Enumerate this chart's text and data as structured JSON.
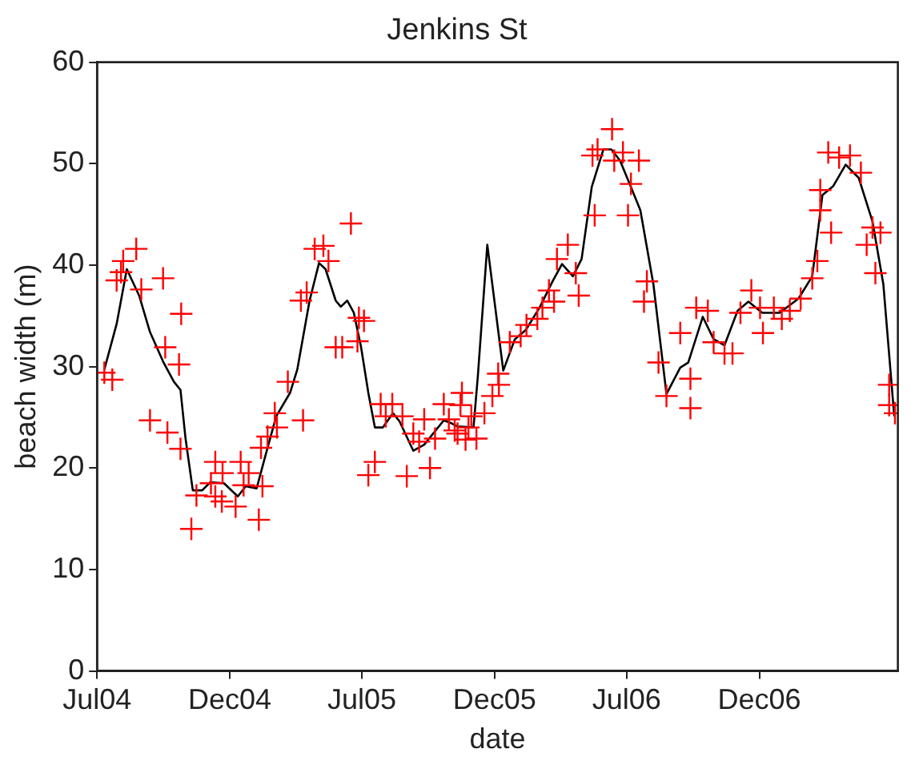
{
  "chart_data": {
    "type": "scatter",
    "title": "Jenkins St",
    "xlabel": "date",
    "ylabel": "beach width (m)",
    "xlim": [
      "2004-07-01",
      "2007-07-10"
    ],
    "xticks": [
      {
        "value": "2004-07-01",
        "label": "Jul04"
      },
      {
        "value": "2004-12-31",
        "label": "Dec04"
      },
      {
        "value": "2005-07-01",
        "label": "Jul05"
      },
      {
        "value": "2005-12-31",
        "label": "Dec05"
      },
      {
        "value": "2006-07-01",
        "label": "Jul06"
      },
      {
        "value": "2006-12-31",
        "label": "Dec06"
      }
    ],
    "ylim": [
      0,
      60
    ],
    "yticks": [
      0,
      10,
      20,
      30,
      40,
      50,
      60
    ],
    "grid": false,
    "legend": false,
    "series": [
      {
        "color": "#ff0000",
        "marker": "cross",
        "x": [
          "2004-07-11",
          "2004-07-22",
          "2004-07-28",
          "2004-08-03",
          "2004-08-06",
          "2004-08-24",
          "2004-08-31",
          "2004-09-30",
          "2004-10-25",
          "2004-10-03",
          "2004-10-22",
          "2004-09-12",
          "2004-10-06",
          "2004-10-24",
          "2004-11-08",
          "2004-11-15",
          "2004-12-05",
          "2004-12-11",
          "2004-12-11",
          "2004-12-21",
          "2004-12-20",
          "2005-01-08",
          "2005-01-19",
          "2005-01-15",
          "2005-01-26",
          "2005-02-09",
          "2005-02-14",
          "2005-02-12",
          "2005-02-21",
          "2005-03-06",
          "2005-03-03",
          "2005-03-21",
          "2005-04-11",
          "2005-04-08",
          "2005-04-16",
          "2005-04-27",
          "2005-05-09",
          "2005-05-16",
          "2005-06-16",
          "2005-05-26",
          "2005-06-04",
          "2005-06-25",
          "2005-06-27",
          "2005-07-04",
          "2005-07-19",
          "2005-07-10",
          "2005-07-27",
          "2005-08-12",
          "2005-08-03",
          "2005-08-26",
          "2005-09-10",
          "2005-09-01",
          "2005-09-18",
          "2005-09-25",
          "2005-10-03",
          "2005-10-10",
          "2005-10-22",
          "2005-10-29",
          "2005-11-06",
          "2005-11-16",
          "2005-11-25",
          "2005-12-06",
          "2005-11-14",
          "2005-11-10",
          "2005-11-21",
          "2005-11-29",
          "2005-12-17",
          "2005-12-28",
          "2006-01-06",
          "2006-01-05",
          "2006-01-21",
          "2006-02-05",
          "2006-02-13",
          "2006-02-28",
          "2006-03-07",
          "2006-03-16",
          "2006-03-23",
          "2006-03-27",
          "2006-04-11",
          "2006-04-22",
          "2006-04-26",
          "2006-05-18",
          "2006-05-15",
          "2006-05-22",
          "2006-06-11",
          "2006-06-14",
          "2006-06-26",
          "2006-07-07",
          "2006-07-18",
          "2006-07-03",
          "2006-07-29",
          "2006-07-25",
          "2006-08-14",
          "2006-08-25",
          "2006-09-27",
          "2006-09-27",
          "2006-09-13",
          "2006-10-05",
          "2006-10-21",
          "2006-10-29",
          "2006-11-13",
          "2006-11-24",
          "2006-12-05",
          "2006-12-20",
          "2007-01-01",
          "2007-01-05",
          "2007-01-20",
          "2007-01-31",
          "2007-02-11",
          "2007-02-26",
          "2007-03-14",
          "2007-03-21",
          "2007-04-09",
          "2007-03-25",
          "2007-03-25",
          "2007-04-05",
          "2007-04-20",
          "2007-05-05",
          "2007-05-20",
          "2007-06-05",
          "2007-05-28",
          "2007-06-16",
          "2007-06-09",
          "2007-06-28",
          "2007-06-28",
          "2007-07-06"
        ],
        "values": [
          29.4,
          28.7,
          38.5,
          39.3,
          40.4,
          41.6,
          37.6,
          38.7,
          35.2,
          31.9,
          30.2,
          24.7,
          23.5,
          21.9,
          14.0,
          17.3,
          18.5,
          20.6,
          17.2,
          19.5,
          16.7,
          16.2,
          18.3,
          20.6,
          19.5,
          14.9,
          18.2,
          22.0,
          23.1,
          24.0,
          25.4,
          28.5,
          24.7,
          36.5,
          37.3,
          41.6,
          41.9,
          40.4,
          44.1,
          31.9,
          31.9,
          32.5,
          34.8,
          34.5,
          20.6,
          19.3,
          26.3,
          26.3,
          25.1,
          25.1,
          23.4,
          19.2,
          22.6,
          24.8,
          20.0,
          22.9,
          26.3,
          24.8,
          23.7,
          27.4,
          24.0,
          22.9,
          26.2,
          23.4,
          22.8,
          25.1,
          25.4,
          27.1,
          28.2,
          29.3,
          32.4,
          33.0,
          34.1,
          34.7,
          35.8,
          37.5,
          36.4,
          40.6,
          42.0,
          39.2,
          37.0,
          44.9,
          50.8,
          51.4,
          53.4,
          50.3,
          51.1,
          48.0,
          50.3,
          44.9,
          38.4,
          36.4,
          30.4,
          27.1,
          28.8,
          25.9,
          33.3,
          35.8,
          35.5,
          32.4,
          31.3,
          31.3,
          35.3,
          37.5,
          35.8,
          33.3,
          35.8,
          34.7,
          35.5,
          36.7,
          38.7,
          40.4,
          43.2,
          45.4,
          47.4,
          51.1,
          50.6,
          50.8,
          49.1,
          43.7,
          42.0,
          43.2,
          39.2,
          28.2,
          26.2,
          25.4
        ]
      },
      {
        "type": "line",
        "color": "#000000",
        "marker": "none",
        "line_style": "solid",
        "x": [
          "2004-07-11",
          "2004-07-28",
          "2004-08-11",
          "2004-08-28",
          "2004-09-12",
          "2004-09-30",
          "2004-10-15",
          "2004-10-24",
          "2004-10-31",
          "2004-11-10",
          "2004-11-23",
          "2004-12-04",
          "2004-12-23",
          "2005-01-11",
          "2005-01-22",
          "2005-02-06",
          "2005-02-18",
          "2005-03-05",
          "2005-03-24",
          "2005-04-03",
          "2005-04-20",
          "2005-05-03",
          "2005-05-12",
          "2005-05-26",
          "2005-06-02",
          "2005-06-11",
          "2005-06-20",
          "2005-06-30",
          "2005-07-10",
          "2005-07-19",
          "2005-07-30",
          "2005-08-13",
          "2005-08-22",
          "2005-09-10",
          "2005-09-25",
          "2005-10-22",
          "2005-11-02",
          "2005-11-10",
          "2005-12-02",
          "2005-12-08",
          "2005-12-21",
          "2006-01-12",
          "2006-01-28",
          "2006-02-12",
          "2006-03-03",
          "2006-03-21",
          "2006-04-03",
          "2006-04-18",
          "2006-04-30",
          "2006-05-14",
          "2006-05-30",
          "2006-06-10",
          "2006-06-22",
          "2006-07-07",
          "2006-07-20",
          "2006-08-07",
          "2006-08-25",
          "2006-09-13",
          "2006-09-24",
          "2006-10-14",
          "2006-10-29",
          "2006-11-13",
          "2006-12-01",
          "2006-12-16",
          "2007-01-04",
          "2007-01-28",
          "2007-02-23",
          "2007-03-14",
          "2007-03-28",
          "2007-04-12",
          "2007-04-29",
          "2007-05-17",
          "2007-06-05",
          "2007-06-20",
          "2007-07-05"
        ],
        "values": [
          29.7,
          34.2,
          39.6,
          37.0,
          33.4,
          30.5,
          28.5,
          27.7,
          22.9,
          17.8,
          17.8,
          18.6,
          18.5,
          17.2,
          18.2,
          18.0,
          21.2,
          25.1,
          27.4,
          29.7,
          36.5,
          40.2,
          39.6,
          36.5,
          35.9,
          36.5,
          35.3,
          31.9,
          27.4,
          24.0,
          24.0,
          25.4,
          24.6,
          21.7,
          22.3,
          24.7,
          24.4,
          24.1,
          24.0,
          29.1,
          42.0,
          29.6,
          32.7,
          33.6,
          35.8,
          38.4,
          40.1,
          38.9,
          40.6,
          47.7,
          51.4,
          51.4,
          50.3,
          47.7,
          45.4,
          38.1,
          27.3,
          29.9,
          30.4,
          34.9,
          32.7,
          32.1,
          35.5,
          36.4,
          35.3,
          35.3,
          36.7,
          38.9,
          46.9,
          47.8,
          49.9,
          48.6,
          44.3,
          38.1,
          25.1
        ]
      }
    ]
  }
}
